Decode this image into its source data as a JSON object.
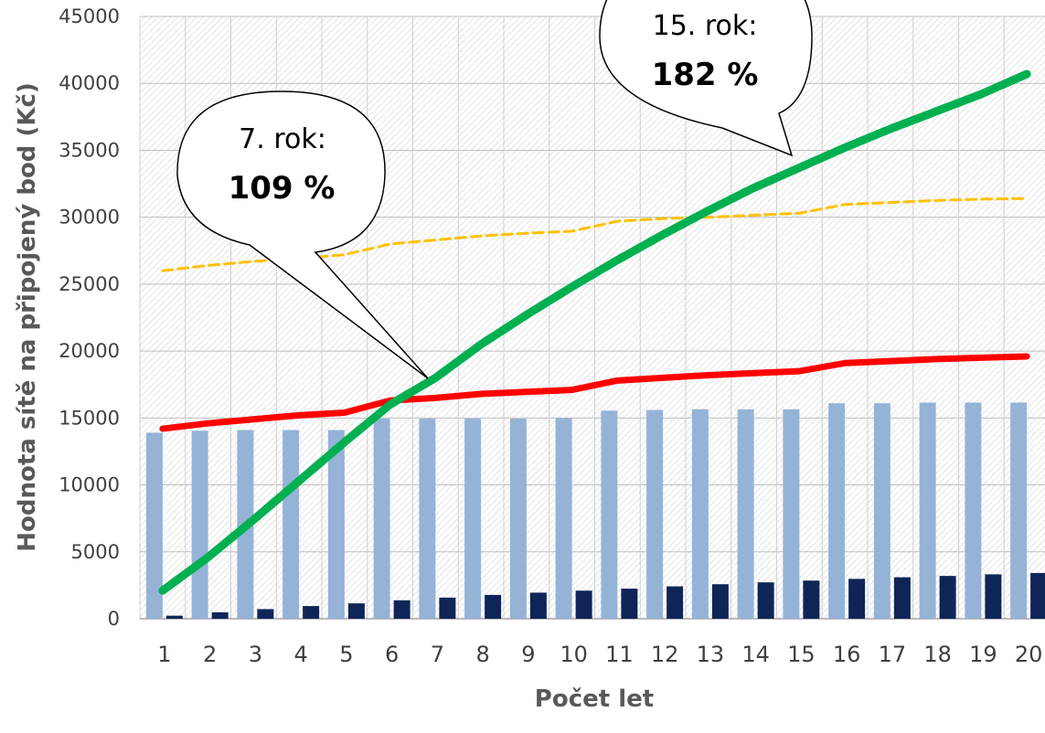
{
  "chart_data": {
    "type": "bar",
    "title": "",
    "xlabel": "Počet let",
    "ylabel": "Hodnota sítě na připojený bod (Kč)",
    "ylim": [
      0,
      45000
    ],
    "yticks": [
      0,
      5000,
      10000,
      15000,
      20000,
      25000,
      30000,
      35000,
      40000,
      45000
    ],
    "categories": [
      "1",
      "2",
      "3",
      "4",
      "5",
      "6",
      "7",
      "8",
      "9",
      "10",
      "11",
      "12",
      "13",
      "14",
      "15",
      "16",
      "17",
      "18",
      "19",
      "20"
    ],
    "grid": "horizontal and vertical, hatched plot background",
    "legend": "none",
    "series": [
      {
        "kind": "bar",
        "color": "#95b3d7",
        "values": [
          13900,
          14050,
          14100,
          14100,
          14100,
          14950,
          14950,
          14950,
          14950,
          15000,
          15550,
          15600,
          15650,
          15650,
          15650,
          16100,
          16100,
          16150,
          16150,
          16150
        ]
      },
      {
        "kind": "bar",
        "color": "#0f2557",
        "values": [
          230,
          480,
          720,
          950,
          1150,
          1380,
          1580,
          1780,
          1950,
          2100,
          2250,
          2420,
          2580,
          2720,
          2850,
          2980,
          3100,
          3200,
          3320,
          3420
        ]
      },
      {
        "kind": "line",
        "color": "#00b050",
        "values": [
          2100,
          4600,
          7400,
          10300,
          13200,
          16000,
          18000,
          20500,
          22700,
          24800,
          26800,
          28700,
          30500,
          32200,
          33700,
          35200,
          36600,
          37900,
          39200,
          40700
        ]
      },
      {
        "kind": "line",
        "color": "#ff0000",
        "values": [
          14200,
          14600,
          14900,
          15200,
          15400,
          16300,
          16500,
          16800,
          16950,
          17100,
          17800,
          18000,
          18200,
          18350,
          18500,
          19100,
          19250,
          19400,
          19500,
          19600
        ]
      },
      {
        "kind": "dashed-line",
        "color": "#ffc000",
        "values": [
          26000,
          26400,
          26700,
          26900,
          27200,
          28000,
          28300,
          28600,
          28800,
          28950,
          29700,
          29900,
          30000,
          30150,
          30300,
          30950,
          31100,
          31250,
          31350,
          31400
        ]
      }
    ],
    "annotations": [
      {
        "line1": "7. rok:",
        "line2": "109 %"
      },
      {
        "line1": "15. rok:",
        "line2": "182 %"
      }
    ]
  }
}
